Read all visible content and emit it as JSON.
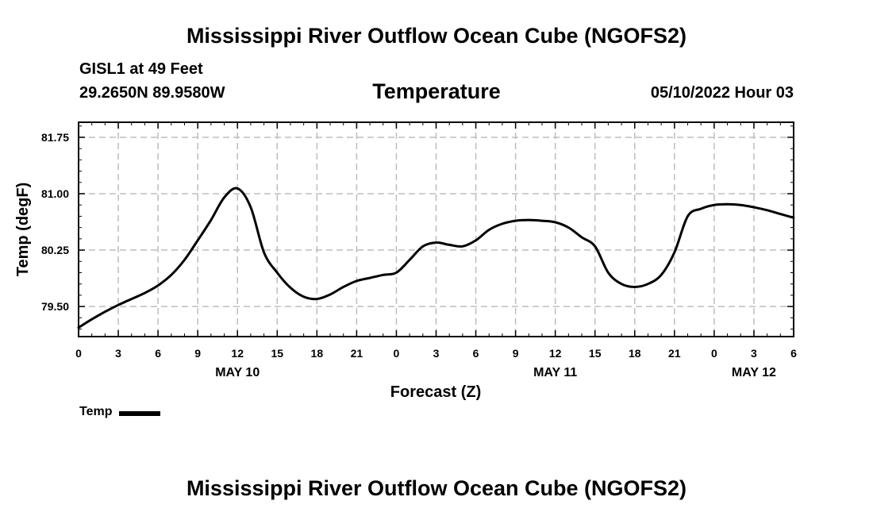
{
  "chart_data": {
    "type": "line",
    "title": "Mississippi River Outflow Ocean Cube (NGOFS2)",
    "footer_title": "Mississippi River Outflow Ocean Cube (NGOFS2)",
    "station": "GISL1 at 49 Feet",
    "coords": "29.2650N  89.9580W",
    "subtitle": "Temperature",
    "date": "05/10/2022 Hour 03",
    "xlabel": "Forecast (Z)",
    "ylabel": "Temp (degF)",
    "xlim": [
      0,
      54
    ],
    "ylim": [
      79.1,
      81.95
    ],
    "yticks": [
      79.5,
      80.25,
      81.0,
      81.75
    ],
    "ytick_labels": [
      "79.50",
      "80.25",
      "81.00",
      "81.75"
    ],
    "xticks": [
      0,
      3,
      6,
      9,
      12,
      15,
      18,
      21,
      24,
      27,
      30,
      33,
      36,
      39,
      42,
      45,
      48,
      51,
      54
    ],
    "xtick_labels": [
      "0",
      "3",
      "6",
      "9",
      "12",
      "15",
      "18",
      "21",
      "0",
      "3",
      "6",
      "9",
      "12",
      "15",
      "18",
      "21",
      "0",
      "3",
      "6"
    ],
    "day_labels": [
      {
        "x": 12,
        "label": "MAY 10"
      },
      {
        "x": 36,
        "label": "MAY 11"
      },
      {
        "x": 51,
        "label": "MAY 12"
      }
    ],
    "grid": true,
    "series": [
      {
        "name": "Temp",
        "color": "#000000",
        "x": [
          0,
          1,
          2,
          3,
          4,
          5,
          6,
          7,
          8,
          9,
          10,
          11,
          12,
          13,
          14,
          15,
          16,
          17,
          18,
          19,
          20,
          21,
          22,
          23,
          24,
          25,
          26,
          27,
          28,
          29,
          30,
          31,
          32,
          33,
          34,
          35,
          36,
          37,
          38,
          39,
          40,
          41,
          42,
          43,
          44,
          45,
          46,
          47,
          48,
          49,
          50,
          51,
          52,
          53,
          54
        ],
        "values": [
          79.22,
          79.33,
          79.43,
          79.52,
          79.6,
          79.68,
          79.78,
          79.92,
          80.12,
          80.38,
          80.65,
          80.95,
          81.07,
          80.82,
          80.22,
          79.95,
          79.75,
          79.63,
          79.6,
          79.66,
          79.76,
          79.84,
          79.88,
          79.92,
          79.95,
          80.12,
          80.3,
          80.35,
          80.32,
          80.3,
          80.38,
          80.52,
          80.6,
          80.64,
          80.65,
          80.64,
          80.62,
          80.55,
          80.42,
          80.3,
          79.95,
          79.8,
          79.76,
          79.8,
          79.92,
          80.22,
          80.7,
          80.8,
          80.85,
          80.86,
          80.85,
          80.82,
          80.78,
          80.73,
          80.68
        ]
      }
    ]
  }
}
